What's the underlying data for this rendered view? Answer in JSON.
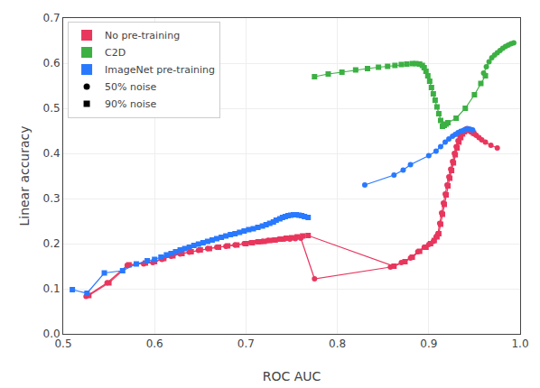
{
  "chart_data": {
    "type": "line",
    "xlabel": "ROC AUC",
    "ylabel": "Linear accuracy",
    "xlim": [
      0.5,
      1.0
    ],
    "ylim": [
      0.0,
      0.7
    ],
    "xticks": [
      0.5,
      0.6,
      0.7,
      0.8,
      0.9,
      {
        "value": 1.0,
        "label": "1.0"
      }
    ],
    "yticks": [
      {
        "value": 0.0,
        "label": "0.0"
      },
      0.1,
      0.2,
      0.3,
      0.4,
      0.5,
      0.6,
      0.7
    ],
    "grid": true,
    "legend": "upper left",
    "series": [
      {
        "name": "No pre-training",
        "marker_label": "50% noise",
        "marker": "circle",
        "color": "#E8365D",
        "x": [
          0.525,
          0.548,
          0.57,
          0.588,
          0.598,
          0.608,
          0.618,
          0.628,
          0.638,
          0.648,
          0.658,
          0.668,
          0.678,
          0.688,
          0.698,
          0.705,
          0.712,
          0.718,
          0.724,
          0.73,
          0.736,
          0.742,
          0.748,
          0.754,
          0.76,
          0.775,
          0.858,
          0.87,
          0.88,
          0.888,
          0.895,
          0.9,
          0.905,
          0.908,
          0.91,
          0.912,
          0.914,
          0.916,
          0.918,
          0.92,
          0.922,
          0.924,
          0.926,
          0.928,
          0.93,
          0.932,
          0.934,
          0.936,
          0.938,
          0.94,
          0.942,
          0.944,
          0.946,
          0.948,
          0.95,
          0.952,
          0.955,
          0.958,
          0.962,
          0.968,
          0.975
        ],
        "values": [
          0.083,
          0.113,
          0.152,
          0.155,
          0.158,
          0.165,
          0.172,
          0.177,
          0.181,
          0.185,
          0.189,
          0.192,
          0.194,
          0.197,
          0.2,
          0.202,
          0.204,
          0.205,
          0.207,
          0.208,
          0.21,
          0.21,
          0.21,
          0.211,
          0.212,
          0.122,
          0.148,
          0.158,
          0.168,
          0.182,
          0.192,
          0.198,
          0.205,
          0.215,
          0.222,
          0.245,
          0.268,
          0.29,
          0.31,
          0.33,
          0.348,
          0.365,
          0.382,
          0.4,
          0.415,
          0.428,
          0.438,
          0.445,
          0.45,
          0.453,
          0.455,
          0.453,
          0.45,
          0.447,
          0.443,
          0.44,
          0.435,
          0.43,
          0.425,
          0.418,
          0.412
        ]
      },
      {
        "name": "No pre-training",
        "marker_label": "90% noise",
        "marker": "square",
        "color": "#E8365D",
        "x": [
          0.528,
          0.55,
          0.572,
          0.59,
          0.6,
          0.61,
          0.62,
          0.63,
          0.64,
          0.65,
          0.66,
          0.67,
          0.68,
          0.69,
          0.7,
          0.707,
          0.714,
          0.72,
          0.726,
          0.732,
          0.738,
          0.744,
          0.75,
          0.756,
          0.762,
          0.768,
          0.862,
          0.874,
          0.882,
          0.89,
          0.897,
          0.902,
          0.906,
          0.909,
          0.911,
          0.913,
          0.915,
          0.917,
          0.919,
          0.921,
          0.923,
          0.925,
          0.927,
          0.929,
          0.931,
          0.933,
          0.935,
          0.937,
          0.939,
          0.941,
          0.943,
          0.945,
          0.947,
          0.949
        ],
        "values": [
          0.085,
          0.113,
          0.153,
          0.157,
          0.16,
          0.167,
          0.173,
          0.178,
          0.182,
          0.186,
          0.189,
          0.192,
          0.195,
          0.197,
          0.2,
          0.202,
          0.204,
          0.205,
          0.207,
          0.208,
          0.21,
          0.212,
          0.213,
          0.215,
          0.217,
          0.218,
          0.15,
          0.16,
          0.17,
          0.183,
          0.192,
          0.2,
          0.207,
          0.215,
          0.222,
          0.243,
          0.265,
          0.287,
          0.308,
          0.328,
          0.345,
          0.362,
          0.379,
          0.397,
          0.412,
          0.425,
          0.435,
          0.443,
          0.448,
          0.451,
          0.452,
          0.451,
          0.448,
          0.445
        ]
      },
      {
        "name": "C2D",
        "marker_label": "50% noise",
        "marker": "circle",
        "color": "#3CB043",
        "x": [
          0.96,
          0.963,
          0.966,
          0.969,
          0.972,
          0.975,
          0.978,
          0.981,
          0.984,
          0.987,
          0.99,
          0.993
        ],
        "values": [
          0.578,
          0.592,
          0.603,
          0.612,
          0.618,
          0.623,
          0.628,
          0.633,
          0.637,
          0.64,
          0.643,
          0.645
        ]
      },
      {
        "name": "C2D",
        "marker_label": "90% noise",
        "marker": "square",
        "color": "#3CB043",
        "x": [
          0.775,
          0.79,
          0.805,
          0.82,
          0.833,
          0.845,
          0.855,
          0.863,
          0.87,
          0.876,
          0.882,
          0.886,
          0.89,
          0.893,
          0.895,
          0.897,
          0.899,
          0.901,
          0.903,
          0.905,
          0.907,
          0.909,
          0.911,
          0.913,
          0.915,
          0.917,
          0.919,
          0.921,
          0.93,
          0.94,
          0.95,
          0.957,
          0.962
        ],
        "values": [
          0.57,
          0.576,
          0.58,
          0.585,
          0.588,
          0.591,
          0.593,
          0.595,
          0.597,
          0.598,
          0.599,
          0.599,
          0.598,
          0.595,
          0.59,
          0.582,
          0.572,
          0.56,
          0.546,
          0.532,
          0.518,
          0.503,
          0.488,
          0.473,
          0.46,
          0.462,
          0.465,
          0.468,
          0.478,
          0.5,
          0.53,
          0.555,
          0.572
        ]
      },
      {
        "name": "ImageNet pre-training",
        "marker_label": "50% noise",
        "marker": "circle",
        "color": "#2979FF",
        "x": [
          0.83,
          0.862,
          0.872,
          0.88,
          0.9,
          0.908,
          0.913,
          0.918,
          0.922,
          0.926,
          0.929,
          0.932,
          0.935,
          0.938,
          0.94,
          0.942,
          0.944,
          0.946,
          0.948
        ],
        "values": [
          0.33,
          0.352,
          0.363,
          0.375,
          0.395,
          0.405,
          0.415,
          0.425,
          0.432,
          0.438,
          0.442,
          0.446,
          0.449,
          0.451,
          0.453,
          0.454,
          0.454,
          0.453,
          0.452
        ]
      },
      {
        "name": "ImageNet pre-training",
        "marker_label": "90% noise",
        "marker": "square",
        "color": "#2979FF",
        "x": [
          0.51,
          0.526,
          0.545,
          0.565,
          0.58,
          0.592,
          0.6,
          0.607,
          0.613,
          0.618,
          0.623,
          0.628,
          0.633,
          0.638,
          0.643,
          0.648,
          0.653,
          0.658,
          0.663,
          0.668,
          0.673,
          0.678,
          0.683,
          0.688,
          0.693,
          0.698,
          0.703,
          0.708,
          0.713,
          0.718,
          0.722,
          0.726,
          0.73,
          0.733,
          0.737,
          0.74,
          0.743,
          0.746,
          0.749,
          0.752,
          0.755,
          0.758,
          0.761,
          0.764,
          0.768
        ],
        "values": [
          0.098,
          0.09,
          0.135,
          0.14,
          0.155,
          0.162,
          0.165,
          0.17,
          0.175,
          0.178,
          0.182,
          0.186,
          0.189,
          0.192,
          0.196,
          0.199,
          0.202,
          0.205,
          0.208,
          0.211,
          0.214,
          0.217,
          0.22,
          0.222,
          0.225,
          0.228,
          0.231,
          0.233,
          0.236,
          0.239,
          0.242,
          0.245,
          0.248,
          0.252,
          0.255,
          0.258,
          0.26,
          0.262,
          0.263,
          0.264,
          0.264,
          0.263,
          0.262,
          0.26,
          0.258
        ]
      }
    ]
  }
}
